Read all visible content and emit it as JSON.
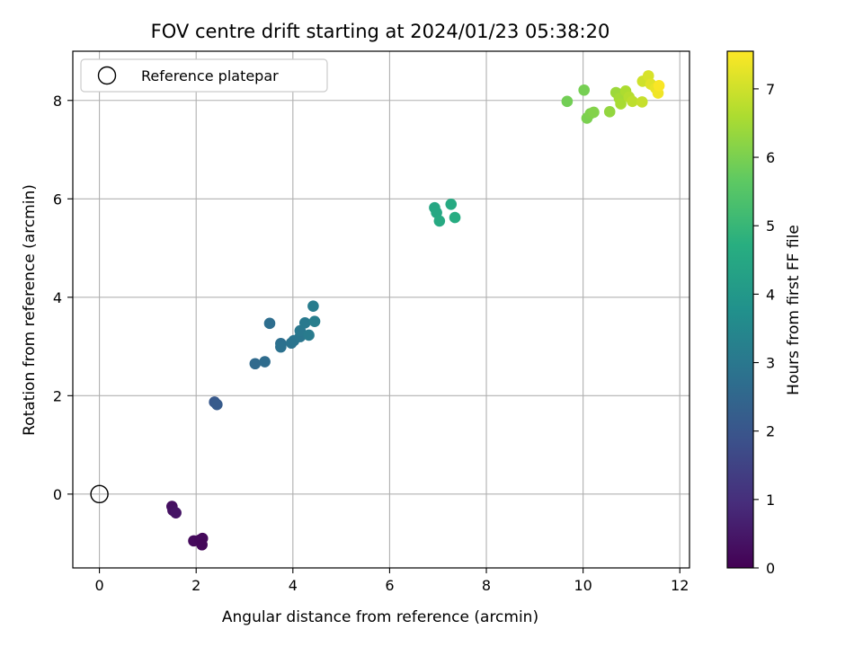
{
  "chart_data": {
    "type": "scatter",
    "title": "FOV centre drift starting at 2024/01/23 05:38:20",
    "xlabel": "Angular distance from reference (arcmin)",
    "ylabel": "Rotation from reference (arcmin)",
    "xlim": [
      -0.55,
      12.2
    ],
    "ylim": [
      -1.5,
      9.0
    ],
    "xticks": [
      0,
      2,
      4,
      6,
      8,
      10,
      12
    ],
    "yticks": [
      0,
      2,
      4,
      6,
      8
    ],
    "grid": true,
    "legend": {
      "position": "upper-left",
      "entries": [
        "Reference platepar"
      ]
    },
    "colorbar": {
      "label": "Hours from first FF file",
      "range": [
        0,
        7.55
      ],
      "ticks": [
        0,
        1,
        2,
        3,
        4,
        5,
        6,
        7
      ],
      "colormap": "viridis"
    },
    "reference": {
      "x": 0,
      "y": 0,
      "label": "Reference platepar"
    },
    "series": [
      {
        "name": "FOV centre",
        "points": [
          {
            "x": 1.5,
            "y": -0.25,
            "c": 0.3
          },
          {
            "x": 1.52,
            "y": -0.33,
            "c": 0.35
          },
          {
            "x": 1.58,
            "y": -0.38,
            "c": 0.4
          },
          {
            "x": 1.95,
            "y": -0.95,
            "c": 0.2
          },
          {
            "x": 2.08,
            "y": -0.93,
            "c": 0.15
          },
          {
            "x": 2.13,
            "y": -0.9,
            "c": 0.18
          },
          {
            "x": 2.12,
            "y": -1.03,
            "c": 0.12
          },
          {
            "x": 2.38,
            "y": 1.87,
            "c": 2.1
          },
          {
            "x": 2.43,
            "y": 1.82,
            "c": 2.15
          },
          {
            "x": 3.22,
            "y": 2.65,
            "c": 2.6
          },
          {
            "x": 3.42,
            "y": 2.69,
            "c": 2.65
          },
          {
            "x": 3.52,
            "y": 3.47,
            "c": 2.7
          },
          {
            "x": 3.75,
            "y": 3.06,
            "c": 2.75
          },
          {
            "x": 3.75,
            "y": 2.99,
            "c": 2.8
          },
          {
            "x": 3.97,
            "y": 3.07,
            "c": 2.85
          },
          {
            "x": 4.02,
            "y": 3.12,
            "c": 2.9
          },
          {
            "x": 4.15,
            "y": 3.2,
            "c": 2.95
          },
          {
            "x": 4.15,
            "y": 3.32,
            "c": 3.0
          },
          {
            "x": 4.25,
            "y": 3.48,
            "c": 3.05
          },
          {
            "x": 4.33,
            "y": 3.23,
            "c": 3.1
          },
          {
            "x": 4.42,
            "y": 3.82,
            "c": 3.15
          },
          {
            "x": 4.45,
            "y": 3.51,
            "c": 3.2
          },
          {
            "x": 6.93,
            "y": 5.82,
            "c": 4.45
          },
          {
            "x": 6.97,
            "y": 5.72,
            "c": 4.5
          },
          {
            "x": 7.03,
            "y": 5.55,
            "c": 4.55
          },
          {
            "x": 7.27,
            "y": 5.89,
            "c": 4.6
          },
          {
            "x": 7.35,
            "y": 5.62,
            "c": 4.65
          },
          {
            "x": 9.67,
            "y": 7.98,
            "c": 5.9
          },
          {
            "x": 10.02,
            "y": 8.21,
            "c": 5.95
          },
          {
            "x": 10.08,
            "y": 7.64,
            "c": 6.0
          },
          {
            "x": 10.15,
            "y": 7.73,
            "c": 6.05
          },
          {
            "x": 10.22,
            "y": 7.76,
            "c": 6.1
          },
          {
            "x": 10.55,
            "y": 7.77,
            "c": 6.3
          },
          {
            "x": 10.68,
            "y": 8.16,
            "c": 6.4
          },
          {
            "x": 10.75,
            "y": 8.04,
            "c": 6.5
          },
          {
            "x": 10.78,
            "y": 7.93,
            "c": 6.55
          },
          {
            "x": 10.88,
            "y": 8.19,
            "c": 6.6
          },
          {
            "x": 10.95,
            "y": 8.07,
            "c": 6.7
          },
          {
            "x": 11.02,
            "y": 7.98,
            "c": 6.8
          },
          {
            "x": 11.22,
            "y": 7.97,
            "c": 6.9
          },
          {
            "x": 11.23,
            "y": 8.39,
            "c": 7.0
          },
          {
            "x": 11.35,
            "y": 8.5,
            "c": 7.1
          },
          {
            "x": 11.4,
            "y": 8.33,
            "c": 7.2
          },
          {
            "x": 11.5,
            "y": 8.25,
            "c": 7.3
          },
          {
            "x": 11.55,
            "y": 8.15,
            "c": 7.4
          },
          {
            "x": 11.57,
            "y": 8.3,
            "c": 7.5
          }
        ]
      }
    ]
  }
}
